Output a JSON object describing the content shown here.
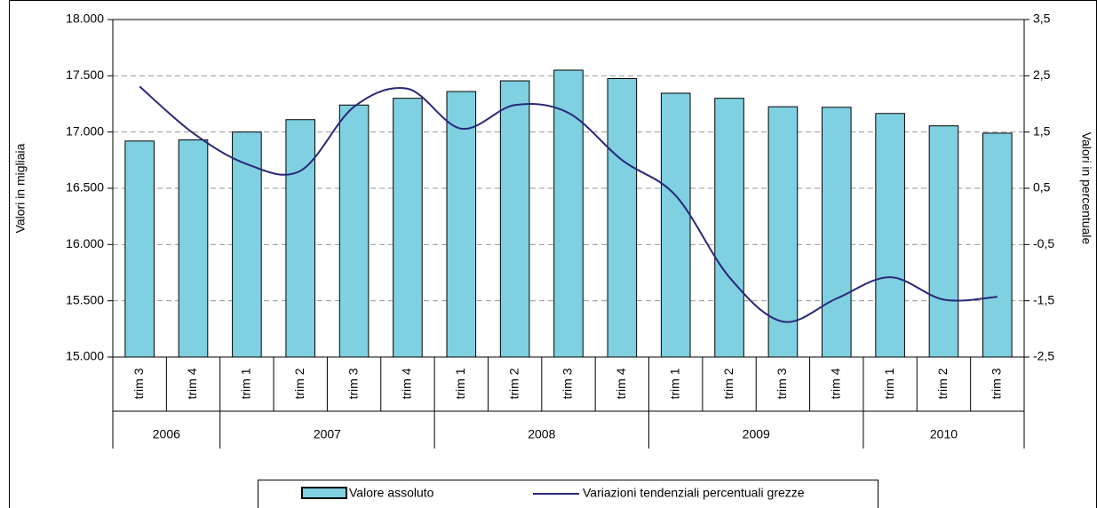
{
  "chart_data": {
    "type": "bar_line",
    "categories": [
      "trim 3",
      "trim 4",
      "trim 1",
      "trim 2",
      "trim 3",
      "trim 4",
      "trim 1",
      "trim 2",
      "trim 3",
      "trim 4",
      "trim 1",
      "trim 2",
      "trim 3",
      "trim 4",
      "trim 1",
      "trim 2",
      "trim 3"
    ],
    "years": [
      "2006",
      "2006",
      "2007",
      "2007",
      "2007",
      "2007",
      "2008",
      "2008",
      "2008",
      "2008",
      "2009",
      "2009",
      "2009",
      "2009",
      "2010",
      "2010",
      "2010"
    ],
    "ylabel": "Valori in migliaia",
    "y2label": "Valori in percentuale",
    "ylim": [
      15000,
      18000
    ],
    "yticks": [
      {
        "value": 15000,
        "label": "15.000"
      },
      {
        "value": 15500,
        "label": "15.500"
      },
      {
        "value": 16000,
        "label": "16.000"
      },
      {
        "value": 16500,
        "label": "16.500"
      },
      {
        "value": 17000,
        "label": "17.000"
      },
      {
        "value": 17500,
        "label": "17.500"
      },
      {
        "value": 18000,
        "label": "18.000"
      }
    ],
    "y2lim": [
      -2.5,
      3.5
    ],
    "y2ticks": [
      {
        "value": -2.5,
        "label": "-2,5"
      },
      {
        "value": -1.5,
        "label": "-1,5"
      },
      {
        "value": -0.5,
        "label": "-0,5"
      },
      {
        "value": 0.5,
        "label": "0,5"
      },
      {
        "value": 1.5,
        "label": "1,5"
      },
      {
        "value": 2.5,
        "label": "2,5"
      },
      {
        "value": 3.5,
        "label": "3,5"
      }
    ],
    "grid": true,
    "legend": "bottom",
    "series": [
      {
        "name": "Valore assoluto",
        "type": "bar",
        "color": "#7fd0e0",
        "values": [
          16920,
          16930,
          17000,
          17110,
          17240,
          17300,
          17360,
          17455,
          17550,
          17475,
          17345,
          17300,
          17225,
          17220,
          17165,
          17055,
          16990
        ]
      },
      {
        "name": "Variazioni tendenziali percentuali grezze",
        "type": "line",
        "axis": "y2",
        "color": "#28287a",
        "values": [
          2.31,
          1.48,
          0.93,
          0.81,
          1.95,
          2.27,
          1.56,
          1.98,
          1.84,
          1.0,
          0.37,
          -1.08,
          -1.87,
          -1.46,
          -1.08,
          -1.48,
          -1.43
        ]
      }
    ]
  }
}
